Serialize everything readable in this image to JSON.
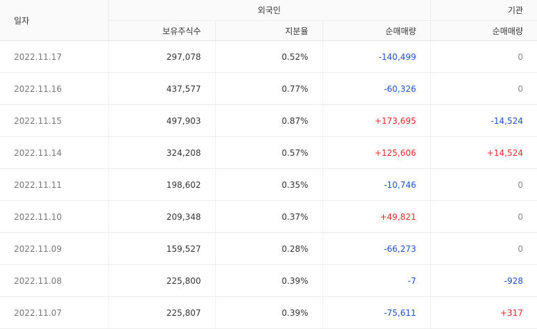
{
  "headers": {
    "date": "일자",
    "foreign_group": "외국인",
    "institution_group": "기관",
    "holdings": "보유주식수",
    "ratio": "지분율",
    "foreign_net": "순매매량",
    "institution_net": "순매매량"
  },
  "colors": {
    "positive": "#e8262b",
    "negative": "#1e4fc4",
    "neutral": "#888888"
  },
  "rows": [
    {
      "date": "2022.11.17",
      "holdings": "297,078",
      "ratio": "0.52%",
      "foreign_net": "-140,499",
      "institution_net": "0"
    },
    {
      "date": "2022.11.16",
      "holdings": "437,577",
      "ratio": "0.77%",
      "foreign_net": "-60,326",
      "institution_net": "0"
    },
    {
      "date": "2022.11.15",
      "holdings": "497,903",
      "ratio": "0.87%",
      "foreign_net": "+173,695",
      "institution_net": "-14,524"
    },
    {
      "date": "2022.11.14",
      "holdings": "324,208",
      "ratio": "0.57%",
      "foreign_net": "+125,606",
      "institution_net": "+14,524"
    },
    {
      "date": "2022.11.11",
      "holdings": "198,602",
      "ratio": "0.35%",
      "foreign_net": "-10,746",
      "institution_net": "0"
    },
    {
      "date": "2022.11.10",
      "holdings": "209,348",
      "ratio": "0.37%",
      "foreign_net": "+49,821",
      "institution_net": "0"
    },
    {
      "date": "2022.11.09",
      "holdings": "159,527",
      "ratio": "0.28%",
      "foreign_net": "-66,273",
      "institution_net": "0"
    },
    {
      "date": "2022.11.08",
      "holdings": "225,800",
      "ratio": "0.39%",
      "foreign_net": "-7",
      "institution_net": "-928"
    },
    {
      "date": "2022.11.07",
      "holdings": "225,807",
      "ratio": "0.39%",
      "foreign_net": "-75,611",
      "institution_net": "+317"
    }
  ]
}
